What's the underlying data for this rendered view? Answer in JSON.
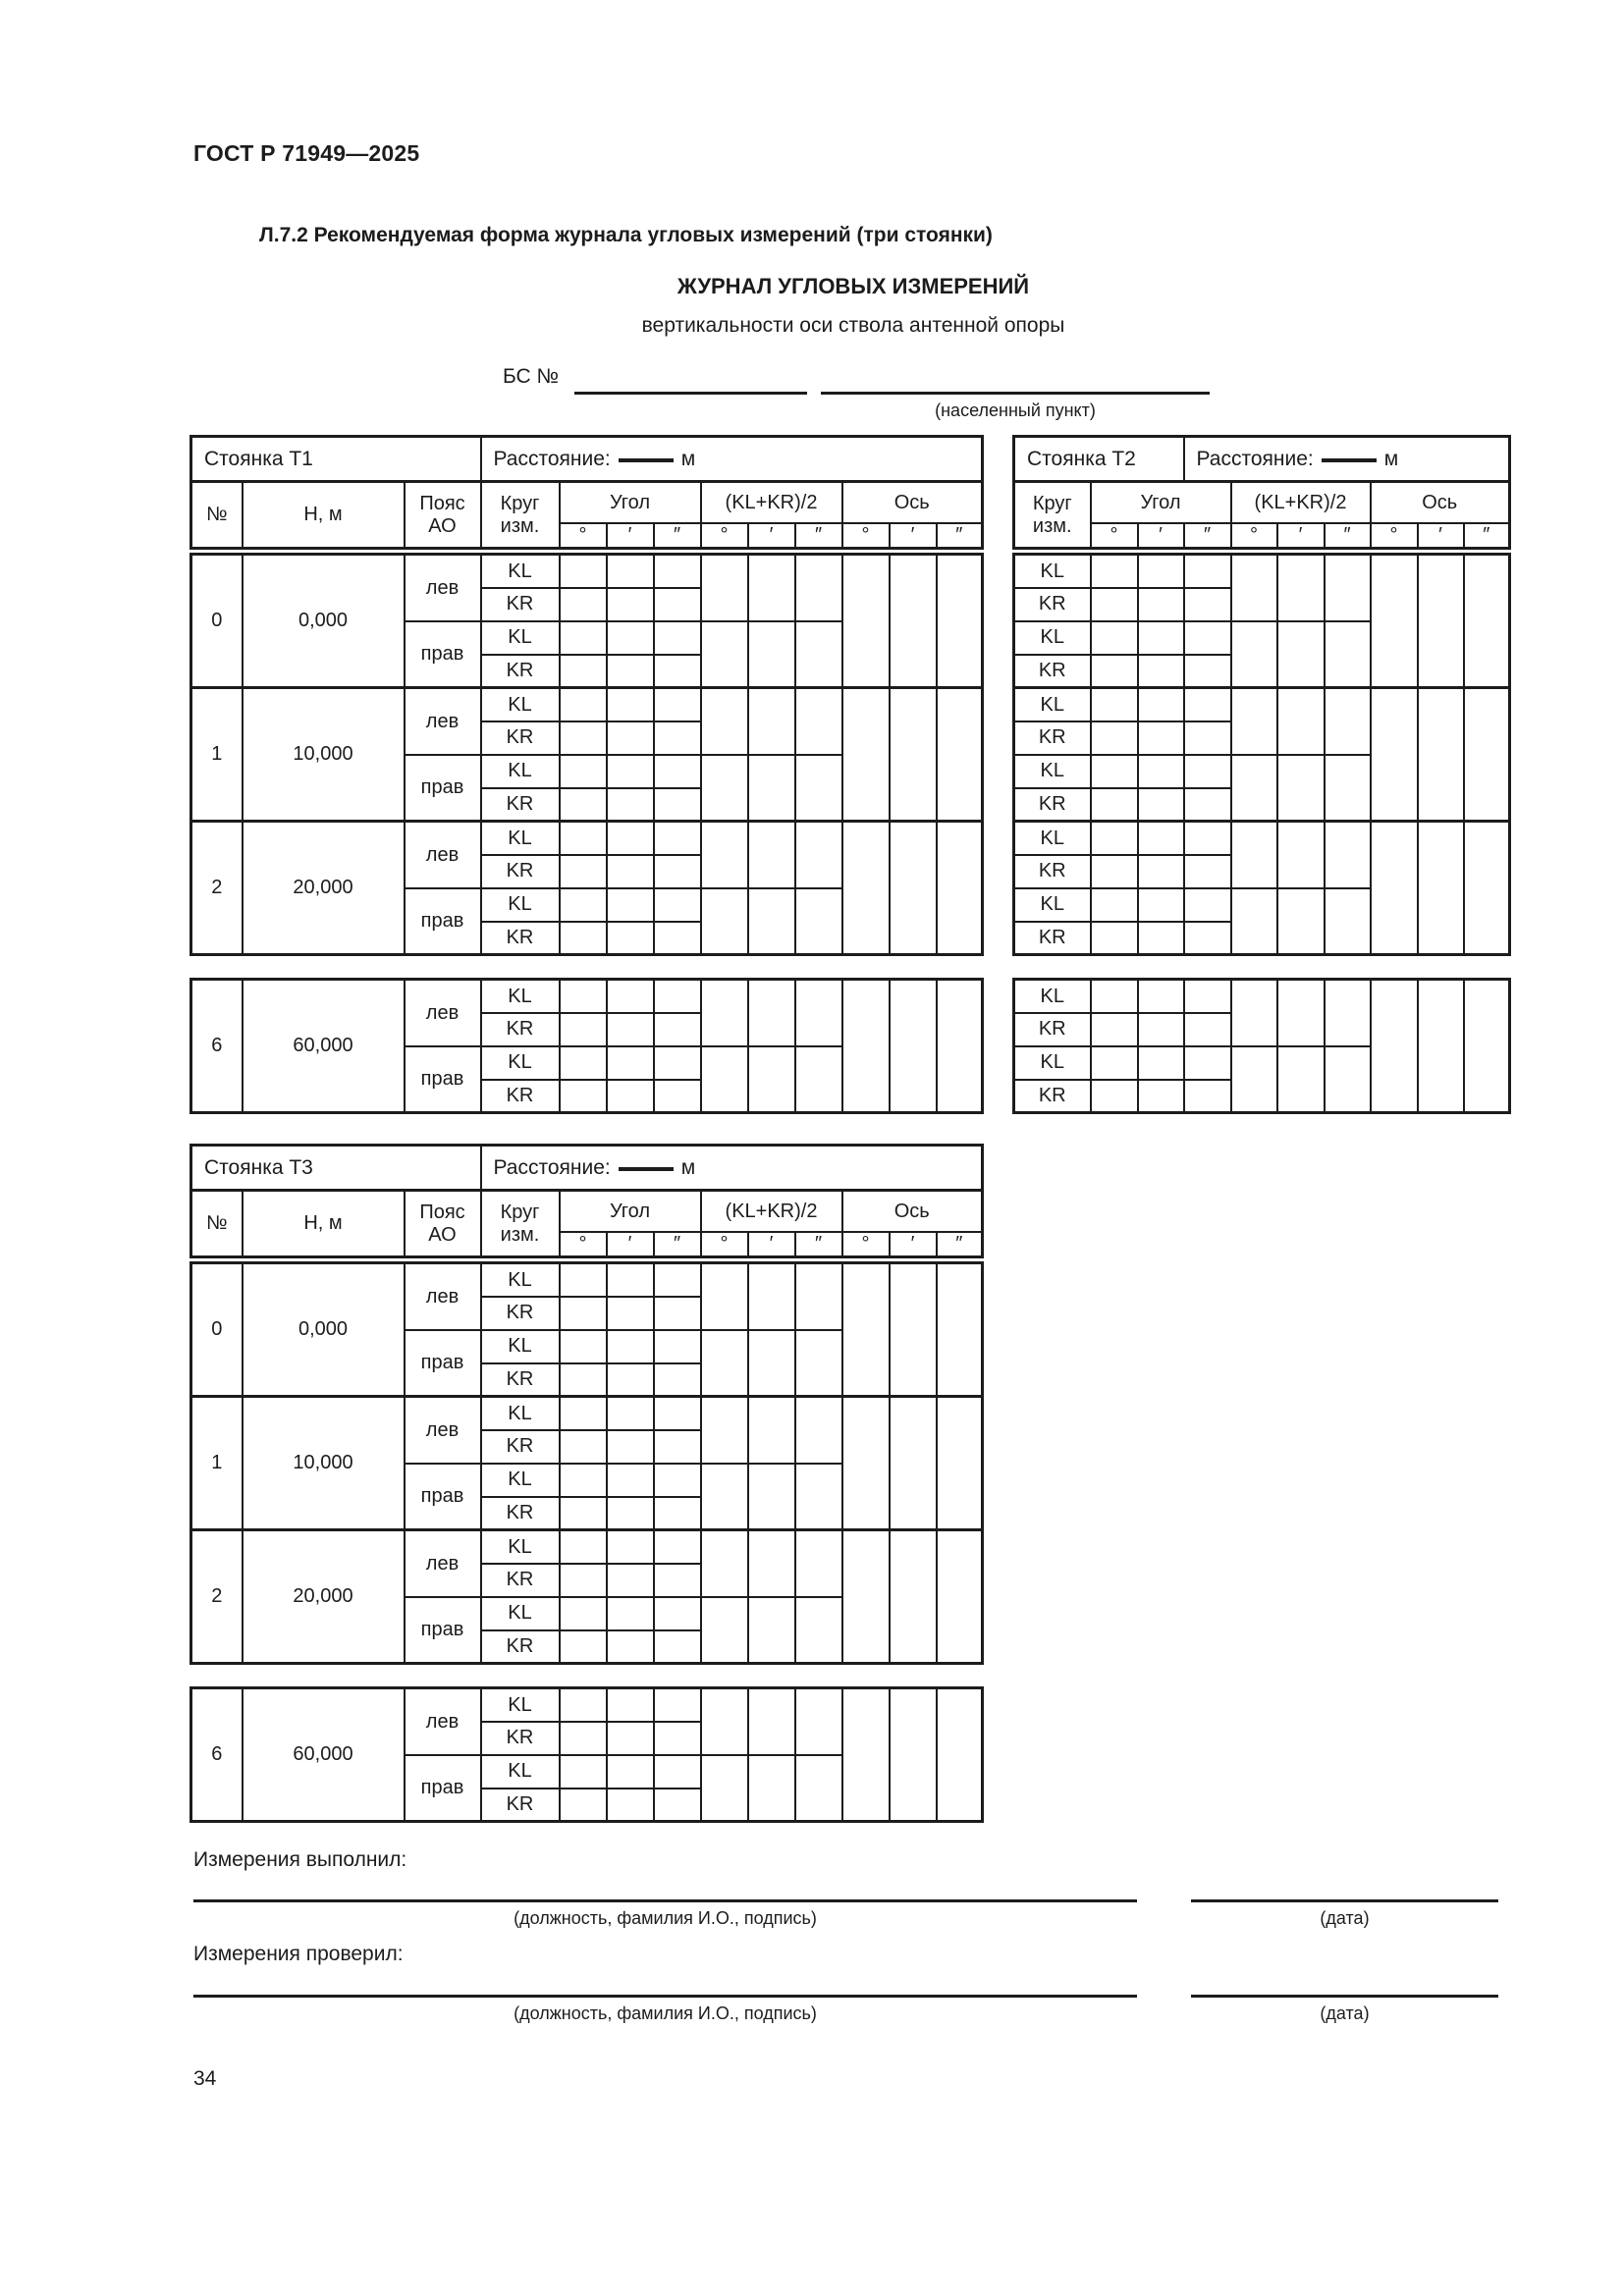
{
  "page": {
    "standard": "ГОСТ Р 71949—2025",
    "section": "Л.7.2 Рекомендуемая форма журнала угловых измерений (три стоянки)",
    "title": "ЖУРНАЛ УГЛОВЫХ ИЗМЕРЕНИЙ",
    "subtitle": "вертикальности оси ствола антенной опоры",
    "bs_label": "БС №",
    "settlement_caption": "(населенный пункт)",
    "page_number": "34"
  },
  "table_labels": {
    "station_t1": "Стоянка Т1",
    "station_t2": "Стоянка Т2",
    "station_t3": "Стоянка Т3",
    "distance_label": "Расстояние:",
    "distance_unit": "м",
    "col_no": "№",
    "col_h": "Н, м",
    "col_belt_1": "Пояс",
    "col_belt_2": "АО",
    "col_circle_1": "Круг",
    "col_circle_2": "изм.",
    "col_angle": "Угол",
    "col_klkr": "(KL+KR)/2",
    "col_axis": "Ось",
    "deg": "°",
    "min": "′",
    "sec": "″",
    "left": "лев",
    "right": "прав",
    "kl": "KL",
    "kr": "KR"
  },
  "rows": {
    "main": [
      {
        "no": "0",
        "h": "0,000"
      },
      {
        "no": "1",
        "h": "10,000"
      },
      {
        "no": "2",
        "h": "20,000"
      }
    ],
    "extra": {
      "no": "6",
      "h": "60,000"
    }
  },
  "footer": {
    "performed_label": "Измерения выполнил:",
    "checked_label": "Измерения проверил:",
    "signature_caption": "(должность, фамилия И.О., подпись)",
    "date_caption": "(дата)"
  }
}
